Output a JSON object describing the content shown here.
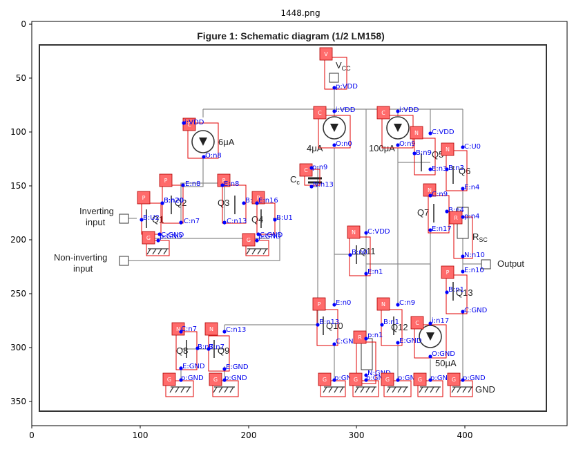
{
  "plot_title": "1448.png",
  "x_ticks": [
    "0",
    "100",
    "200",
    "300",
    "400"
  ],
  "y_ticks": [
    "0",
    "50",
    "100",
    "150",
    "200",
    "250",
    "300",
    "350"
  ],
  "figure_title": "Figure 1: Schematic diagram (1/2 LM158)",
  "schematic_text": {
    "vcc": "V",
    "vcc_sub": "CC",
    "i6": "6μA",
    "i4": "4μA",
    "i100": "100μA",
    "cc": "C",
    "cc_sub": "c",
    "inv1": "Inverting",
    "inv2": "input",
    "ninv1": "Non-inverting",
    "ninv2": "input",
    "output": "Output",
    "rsc": "R",
    "rsc_sub": "SC",
    "i50": "50μA",
    "gnd": "GND",
    "q1": "Q1",
    "q2": "Q2",
    "q3": "Q3",
    "q4": "Q4",
    "q5": "Q5",
    "q6": "Q6",
    "q7": "Q7",
    "q8": "Q8",
    "q9": "Q9",
    "q10": "Q10",
    "q11": "Q11",
    "q12": "Q12",
    "q13": "Q13"
  },
  "components": [
    {
      "id": "vdd-source",
      "tag": "V",
      "pins": [
        "p:VDD"
      ]
    },
    {
      "id": "cs-6ua",
      "tag": "C",
      "pins": [
        "i:VDD",
        "O:n8"
      ]
    },
    {
      "id": "cs-4ua",
      "tag": "C",
      "pins": [
        "i:VDD",
        "O:n0"
      ]
    },
    {
      "id": "cs-100ua",
      "tag": "C",
      "pins": [
        "i:VDD",
        "O:n9"
      ]
    },
    {
      "id": "q5",
      "tag": "N",
      "pins": [
        "C:VDD",
        "B:n9",
        "E:n3"
      ]
    },
    {
      "id": "q6",
      "tag": "N",
      "pins": [
        "C:U0",
        "B:n3",
        "E:n4"
      ]
    },
    {
      "id": "cap-cc",
      "tag": "C",
      "pins": [
        "p:n9",
        "N:n13"
      ]
    },
    {
      "id": "q2",
      "tag": "P",
      "pins": [
        "E:n8",
        "B:n20",
        "C:n7"
      ]
    },
    {
      "id": "q3",
      "tag": "P",
      "pins": [
        "E:n8",
        "B:n16",
        "C:n13"
      ]
    },
    {
      "id": "q1",
      "tag": "P",
      "pins": [
        "E:n20",
        "B:U2",
        "C:GND"
      ]
    },
    {
      "id": "q4",
      "tag": "P",
      "pins": [
        "E:n16",
        "B:U1",
        "C:GND"
      ]
    },
    {
      "id": "gnd-q1",
      "tag": "G",
      "pins": [
        "p:GND"
      ]
    },
    {
      "id": "gnd-q4",
      "tag": "G",
      "pins": [
        "p:GND"
      ]
    },
    {
      "id": "q7",
      "tag": "N",
      "pins": [
        "C:n9",
        "B:n4",
        "E:n17"
      ]
    },
    {
      "id": "rsc",
      "tag": "R",
      "pins": [
        "p:n4",
        "N:n10"
      ]
    },
    {
      "id": "q11",
      "tag": "N",
      "pins": [
        "C:VDD",
        "B:n0",
        "E:n1"
      ]
    },
    {
      "id": "q13",
      "tag": "P",
      "pins": [
        "E:n10",
        "B:n1",
        "C:GND"
      ]
    },
    {
      "id": "q10",
      "tag": "P",
      "pins": [
        "E:n0",
        "B:n13",
        "C:GND"
      ]
    },
    {
      "id": "q12",
      "tag": "N",
      "pins": [
        "C:n9",
        "B:n1",
        "E:GND"
      ]
    },
    {
      "id": "cs-50ua",
      "tag": "C",
      "pins": [
        "i:n17",
        "O:GND"
      ]
    },
    {
      "id": "r-n1",
      "tag": "R",
      "pins": [
        "p:n1",
        "N:GND"
      ]
    },
    {
      "id": "q8",
      "tag": "N",
      "pins": [
        "C:n7",
        "B:n7",
        "E:GND"
      ]
    },
    {
      "id": "q9",
      "tag": "N",
      "pins": [
        "C:n13",
        "B:n7",
        "E:GND"
      ]
    },
    {
      "id": "gnd-q8",
      "tag": "G",
      "pins": [
        "p:GND"
      ]
    },
    {
      "id": "gnd-q9",
      "tag": "G",
      "pins": [
        "p:GND"
      ]
    },
    {
      "id": "gnd-q10",
      "tag": "G",
      "pins": [
        "p:GND"
      ]
    },
    {
      "id": "gnd-r",
      "tag": "G",
      "pins": [
        "p:GND"
      ]
    },
    {
      "id": "gnd-q12",
      "tag": "G",
      "pins": [
        "p:GND"
      ]
    },
    {
      "id": "gnd-cs50",
      "tag": "G",
      "pins": [
        "p:GND"
      ]
    },
    {
      "id": "gnd-out",
      "tag": "G",
      "pins": [
        "p:GND"
      ]
    }
  ]
}
